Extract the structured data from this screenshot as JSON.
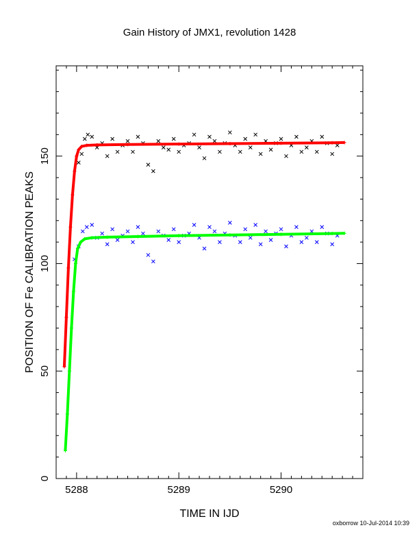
{
  "chart_data": {
    "type": "scatter",
    "title": "Gain History of JMX1, revolution 1428",
    "xlabel": "TIME IN IJD",
    "ylabel": "POSITION OF Fe CALIBRATION PEAKS",
    "xlim": [
      5287.8,
      5290.8
    ],
    "ylim": [
      0,
      192
    ],
    "x_ticks": [
      5288,
      5289,
      5290
    ],
    "y_ticks": [
      0,
      50,
      100,
      150
    ],
    "grid": false,
    "series": [
      {
        "style": "black-x-points",
        "x": [
          5288.02,
          5288.05,
          5288.08,
          5288.11,
          5288.15,
          5288.2,
          5288.25,
          5288.3,
          5288.35,
          5288.4,
          5288.45,
          5288.5,
          5288.55,
          5288.6,
          5288.65,
          5288.7,
          5288.75,
          5288.8,
          5288.85,
          5288.9,
          5288.95,
          5289.0,
          5289.05,
          5289.1,
          5289.15,
          5289.2,
          5289.25,
          5289.3,
          5289.35,
          5289.4,
          5289.45,
          5289.5,
          5289.55,
          5289.6,
          5289.65,
          5289.7,
          5289.75,
          5289.8,
          5289.85,
          5289.9,
          5289.95,
          5290.0,
          5290.05,
          5290.1,
          5290.15,
          5290.2,
          5290.25,
          5290.3,
          5290.35,
          5290.4,
          5290.45,
          5290.5,
          5290.55
        ],
        "y": [
          147,
          151,
          158,
          160,
          159,
          154,
          156,
          150,
          158,
          152,
          155,
          157,
          152,
          159,
          156,
          146,
          143,
          157,
          154,
          153,
          158,
          152,
          155,
          156,
          160,
          154,
          149,
          159,
          157,
          152,
          156,
          161,
          155,
          152,
          158,
          154,
          160,
          151,
          157,
          153,
          156,
          158,
          150,
          155,
          159,
          152,
          154,
          157,
          152,
          159,
          156,
          151,
          155
        ]
      },
      {
        "style": "red-plus-fit",
        "x": [
          5287.88,
          5287.9,
          5287.92,
          5287.94,
          5287.96,
          5287.98,
          5288.0,
          5288.02,
          5288.05,
          5288.1,
          5288.2,
          5288.5,
          5289.0,
          5289.5,
          5290.0,
          5290.5,
          5290.62
        ],
        "y": [
          52,
          75,
          98,
          117,
          132,
          143,
          150,
          153,
          154.5,
          155,
          155.2,
          155.4,
          155.6,
          155.8,
          156,
          156.2,
          156.3
        ]
      },
      {
        "style": "blue-x-points",
        "x": [
          5287.98,
          5288.02,
          5288.06,
          5288.1,
          5288.15,
          5288.2,
          5288.25,
          5288.3,
          5288.35,
          5288.4,
          5288.45,
          5288.5,
          5288.55,
          5288.6,
          5288.65,
          5288.7,
          5288.75,
          5288.8,
          5288.85,
          5288.9,
          5288.95,
          5289.0,
          5289.05,
          5289.1,
          5289.15,
          5289.2,
          5289.25,
          5289.3,
          5289.35,
          5289.4,
          5289.45,
          5289.5,
          5289.55,
          5289.6,
          5289.65,
          5289.7,
          5289.75,
          5289.8,
          5289.85,
          5289.9,
          5289.95,
          5290.0,
          5290.05,
          5290.1,
          5290.15,
          5290.2,
          5290.25,
          5290.3,
          5290.35,
          5290.4,
          5290.45,
          5290.5,
          5290.55
        ],
        "y": [
          102,
          108,
          115,
          117,
          118,
          112,
          114,
          109,
          116,
          111,
          113,
          115,
          110,
          117,
          114,
          104,
          101,
          115,
          113,
          111,
          116,
          110,
          113,
          114,
          118,
          112,
          107,
          117,
          115,
          110,
          114,
          119,
          113,
          110,
          116,
          112,
          118,
          109,
          115,
          111,
          114,
          116,
          108,
          113,
          117,
          110,
          112,
          115,
          110,
          117,
          114,
          109,
          113
        ]
      },
      {
        "style": "green-plus-fit",
        "x": [
          5287.89,
          5287.91,
          5287.93,
          5287.95,
          5287.97,
          5287.99,
          5288.01,
          5288.04,
          5288.08,
          5288.15,
          5288.3,
          5288.6,
          5289.0,
          5289.5,
          5290.0,
          5290.5,
          5290.62
        ],
        "y": [
          13,
          30,
          50,
          70,
          87,
          100,
          107,
          110,
          111.5,
          112,
          112.3,
          112.6,
          113,
          113.3,
          113.6,
          114,
          114.1
        ]
      }
    ]
  },
  "footer": {
    "text": "oxborrow 10-Jul-2014 10:39"
  }
}
